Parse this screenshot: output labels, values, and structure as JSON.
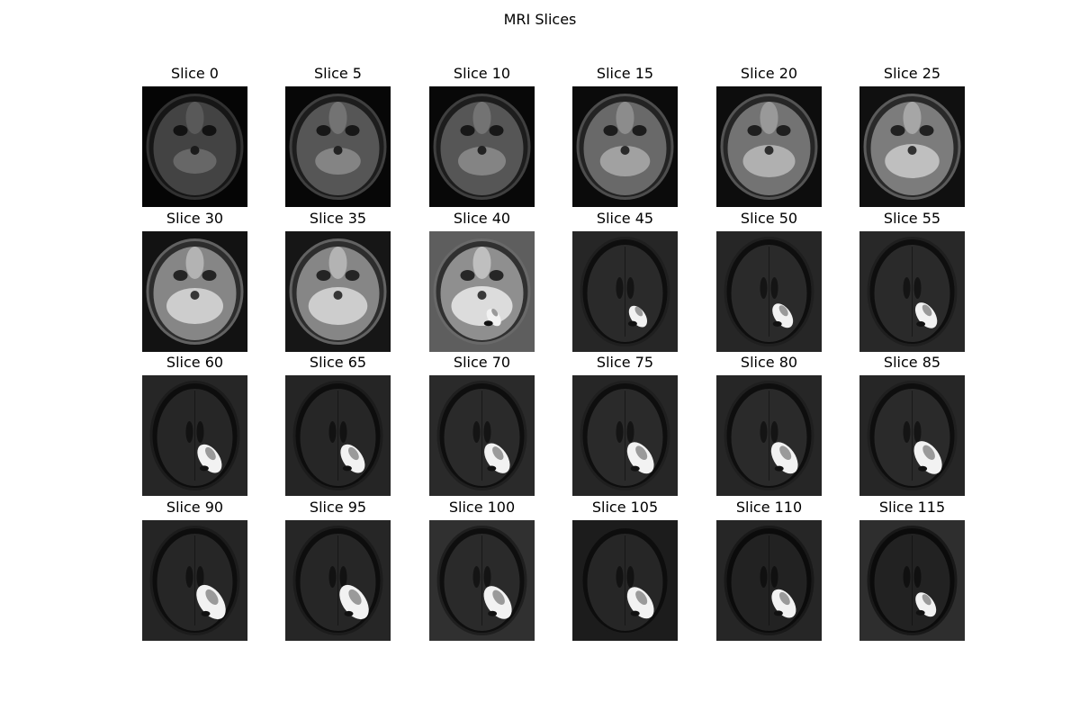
{
  "figure": {
    "title": "MRI Slices"
  },
  "slices": [
    {
      "label": "Slice 0",
      "index": 0,
      "bg": "#050505",
      "brightness": 0.35,
      "lesion": 0.0
    },
    {
      "label": "Slice 5",
      "index": 5,
      "bg": "#070707",
      "brightness": 0.45,
      "lesion": 0.0
    },
    {
      "label": "Slice 10",
      "index": 10,
      "bg": "#080808",
      "brightness": 0.45,
      "lesion": 0.0
    },
    {
      "label": "Slice 15",
      "index": 15,
      "bg": "#0b0b0b",
      "brightness": 0.55,
      "lesion": 0.0
    },
    {
      "label": "Slice 20",
      "index": 20,
      "bg": "#0d0d0d",
      "brightness": 0.6,
      "lesion": 0.0
    },
    {
      "label": "Slice 25",
      "index": 25,
      "bg": "#101010",
      "brightness": 0.65,
      "lesion": 0.0
    },
    {
      "label": "Slice 30",
      "index": 30,
      "bg": "#121212",
      "brightness": 0.7,
      "lesion": 0.0
    },
    {
      "label": "Slice 35",
      "index": 35,
      "bg": "#161616",
      "brightness": 0.7,
      "lesion": 0.0
    },
    {
      "label": "Slice 40",
      "index": 40,
      "bg": "#5e5e5e",
      "brightness": 0.75,
      "lesion": 0.15
    },
    {
      "label": "Slice 45",
      "index": 45,
      "bg": "#262626",
      "brightness": 0.22,
      "lesion": 0.3
    },
    {
      "label": "Slice 50",
      "index": 50,
      "bg": "#262626",
      "brightness": 0.22,
      "lesion": 0.4
    },
    {
      "label": "Slice 55",
      "index": 55,
      "bg": "#282828",
      "brightness": 0.22,
      "lesion": 0.45
    },
    {
      "label": "Slice 60",
      "index": 60,
      "bg": "#262626",
      "brightness": 0.2,
      "lesion": 0.55
    },
    {
      "label": "Slice 65",
      "index": 65,
      "bg": "#252525",
      "brightness": 0.2,
      "lesion": 0.55
    },
    {
      "label": "Slice 70",
      "index": 70,
      "bg": "#2a2a2a",
      "brightness": 0.22,
      "lesion": 0.6
    },
    {
      "label": "Slice 75",
      "index": 75,
      "bg": "#262626",
      "brightness": 0.22,
      "lesion": 0.65
    },
    {
      "label": "Slice 80",
      "index": 80,
      "bg": "#262626",
      "brightness": 0.22,
      "lesion": 0.65
    },
    {
      "label": "Slice 85",
      "index": 85,
      "bg": "#262626",
      "brightness": 0.22,
      "lesion": 0.7
    },
    {
      "label": "Slice 90",
      "index": 90,
      "bg": "#252525",
      "brightness": 0.2,
      "lesion": 0.75
    },
    {
      "label": "Slice 95",
      "index": 95,
      "bg": "#262626",
      "brightness": 0.2,
      "lesion": 0.75
    },
    {
      "label": "Slice 100",
      "index": 100,
      "bg": "#303030",
      "brightness": 0.22,
      "lesion": 0.7
    },
    {
      "label": "Slice 105",
      "index": 105,
      "bg": "#1c1c1c",
      "brightness": 0.2,
      "lesion": 0.65
    },
    {
      "label": "Slice 110",
      "index": 110,
      "bg": "#262626",
      "brightness": 0.18,
      "lesion": 0.55
    },
    {
      "label": "Slice 115",
      "index": 115,
      "bg": "#2e2e2e",
      "brightness": 0.18,
      "lesion": 0.4
    }
  ]
}
